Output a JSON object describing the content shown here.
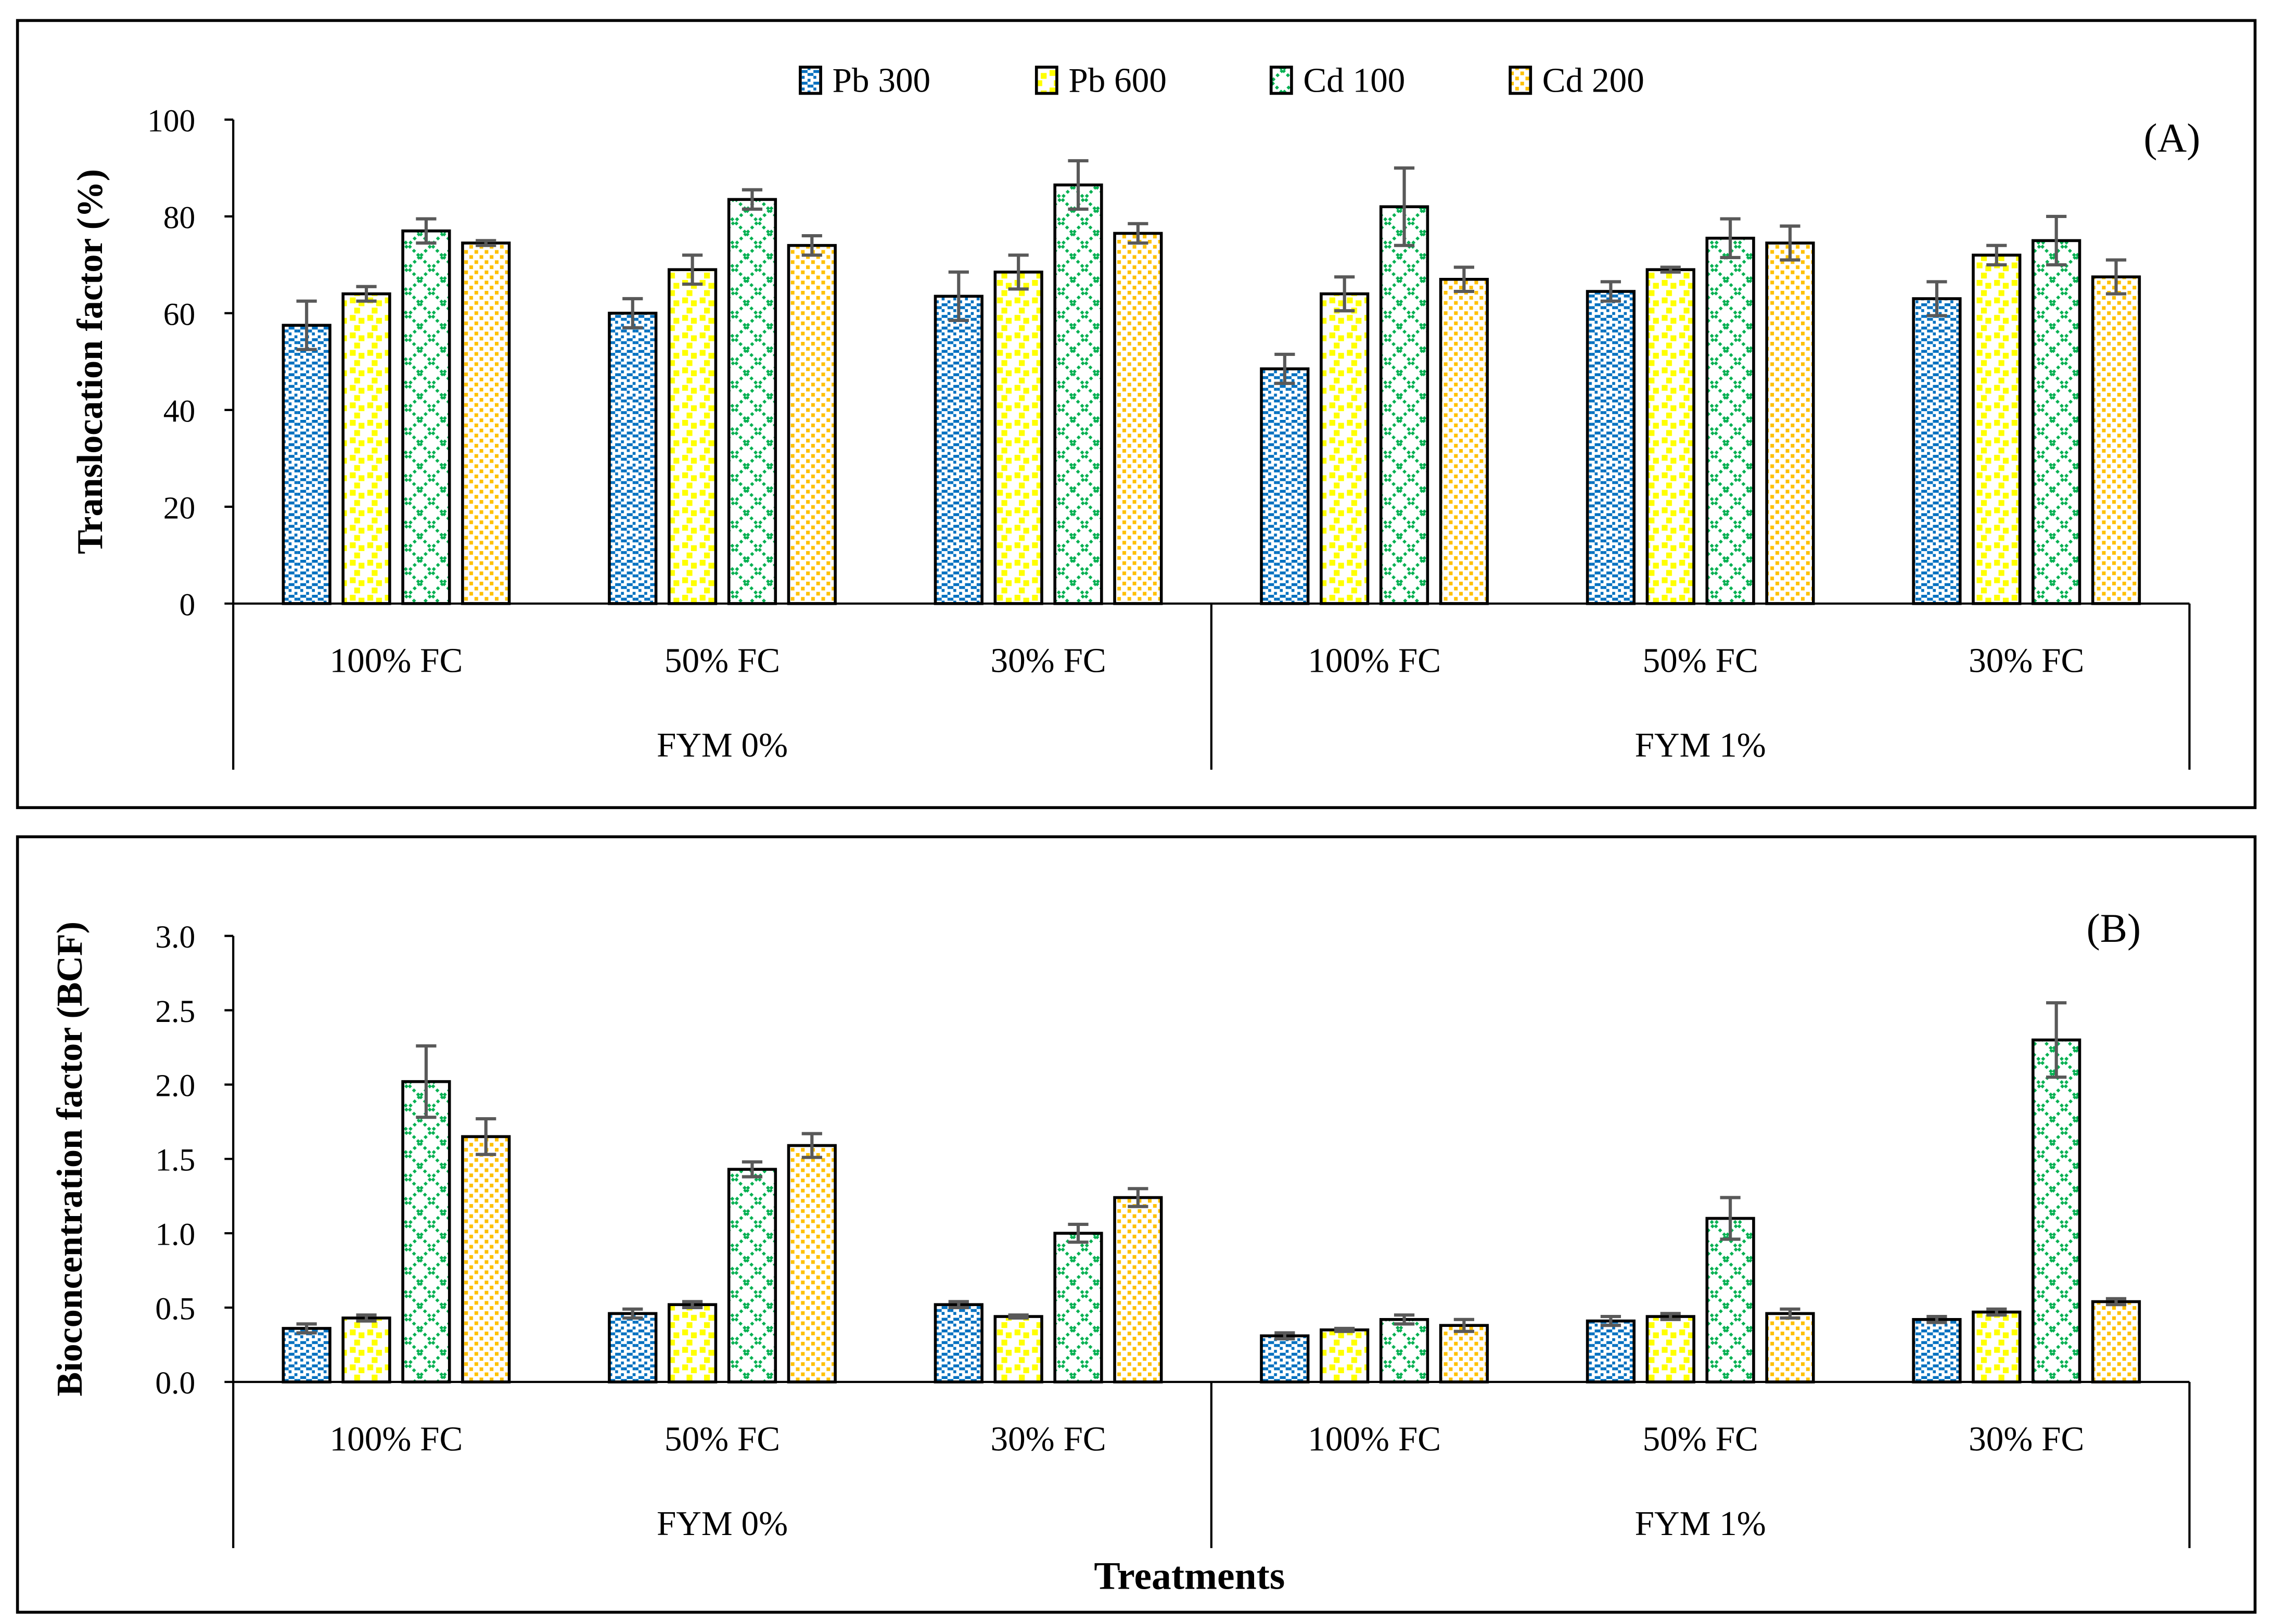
{
  "legend": [
    {
      "name": "Pb 300",
      "color": "#0070C0"
    },
    {
      "name": "Pb 600",
      "color": "#FFFF00"
    },
    {
      "name": "Cd 100",
      "color": "#00B050"
    },
    {
      "name": "Cd 200",
      "color": "#FFC000"
    }
  ],
  "error_bar_color": "#595959",
  "xlabel": "Treatments",
  "chart_data": [
    {
      "type": "bar",
      "panel_label": "(A)",
      "ylabel": "Translocation factor (%)",
      "ylim": [
        0,
        100
      ],
      "yticks": [
        "0",
        "20",
        "40",
        "60",
        "80",
        "100"
      ],
      "ytick_values": [
        0,
        20,
        40,
        60,
        80,
        100
      ],
      "categories": [
        "100% FC",
        "50% FC",
        "30% FC",
        "100% FC",
        "50% FC",
        "30% FC"
      ],
      "groups": [
        "FYM 0%",
        "FYM 1%"
      ],
      "series": [
        {
          "name": "Pb 300",
          "values": [
            57.5,
            60,
            63.5,
            48.5,
            64.5,
            63
          ],
          "errors": [
            5,
            3,
            5,
            3,
            2,
            3.5
          ]
        },
        {
          "name": "Pb 600",
          "values": [
            64,
            69,
            68.5,
            64,
            69,
            72
          ],
          "errors": [
            1.5,
            3,
            3.5,
            3.5,
            0.5,
            2
          ]
        },
        {
          "name": "Cd 100",
          "values": [
            77,
            83.5,
            86.5,
            82,
            75.5,
            75
          ],
          "errors": [
            2.5,
            2,
            5,
            8,
            4,
            5
          ]
        },
        {
          "name": "Cd 200",
          "values": [
            74.5,
            74,
            76.5,
            67,
            74.5,
            67.5
          ],
          "errors": [
            0.5,
            2,
            2,
            2.5,
            3.5,
            3.5
          ]
        }
      ]
    },
    {
      "type": "bar",
      "panel_label": "(B)",
      "ylabel": "Bioconcentration factor (BCF)",
      "ylim": [
        0,
        3
      ],
      "yticks": [
        "0.0",
        "0.5",
        "1.0",
        "1.5",
        "2.0",
        "2.5",
        "3.0"
      ],
      "ytick_values": [
        0,
        0.5,
        1,
        1.5,
        2,
        2.5,
        3
      ],
      "categories": [
        "100% FC",
        "50% FC",
        "30% FC",
        "100% FC",
        "50% FC",
        "30% FC"
      ],
      "groups": [
        "FYM 0%",
        "FYM 1%"
      ],
      "series": [
        {
          "name": "Pb 300",
          "values": [
            0.36,
            0.46,
            0.52,
            0.31,
            0.41,
            0.42
          ],
          "errors": [
            0.03,
            0.03,
            0.02,
            0.02,
            0.03,
            0.02
          ]
        },
        {
          "name": "Pb 600",
          "values": [
            0.43,
            0.52,
            0.44,
            0.35,
            0.44,
            0.47
          ],
          "errors": [
            0.02,
            0.02,
            0.01,
            0.01,
            0.02,
            0.02
          ]
        },
        {
          "name": "Cd 100",
          "values": [
            2.02,
            1.43,
            1.0,
            0.42,
            1.1,
            2.3
          ],
          "errors": [
            0.24,
            0.05,
            0.06,
            0.03,
            0.14,
            0.25
          ]
        },
        {
          "name": "Cd 200",
          "values": [
            1.65,
            1.59,
            1.24,
            0.38,
            0.46,
            0.54
          ],
          "errors": [
            0.12,
            0.08,
            0.06,
            0.04,
            0.03,
            0.02
          ]
        }
      ]
    }
  ]
}
